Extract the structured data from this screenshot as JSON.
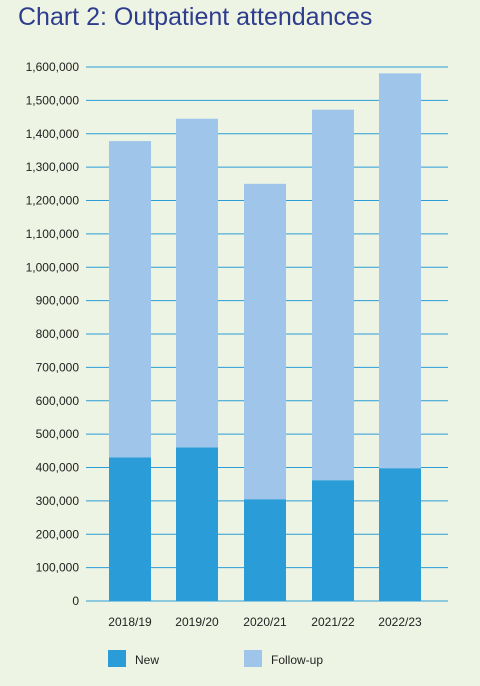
{
  "chart_data": {
    "type": "bar",
    "stacked": true,
    "title": "Chart 2: Outpatient attendances",
    "categories": [
      "2018/19",
      "2019/20",
      "2020/21",
      "2021/22",
      "2022/23"
    ],
    "series": [
      {
        "name": "New",
        "color": "#2a9dd8",
        "values": [
          430000,
          460000,
          305000,
          362000,
          398000
        ]
      },
      {
        "name": "Follow-up",
        "color": "#9fc6ea",
        "values": [
          948000,
          985000,
          945000,
          1110000,
          1183000
        ]
      }
    ],
    "ylim": [
      0,
      1600000
    ],
    "y_ticks": [
      "0",
      "100,000",
      "200,000",
      "300,000",
      "400,000",
      "500,000",
      "600,000",
      "700,000",
      "800,000",
      "900,000",
      "1,000,000",
      "1,100,000",
      "1,200,000",
      "1,300,000",
      "1,400,000",
      "1,500,000",
      "1,600,000"
    ],
    "grid": true,
    "legend": "bottom",
    "gridline_color": "#2a9dd8"
  }
}
